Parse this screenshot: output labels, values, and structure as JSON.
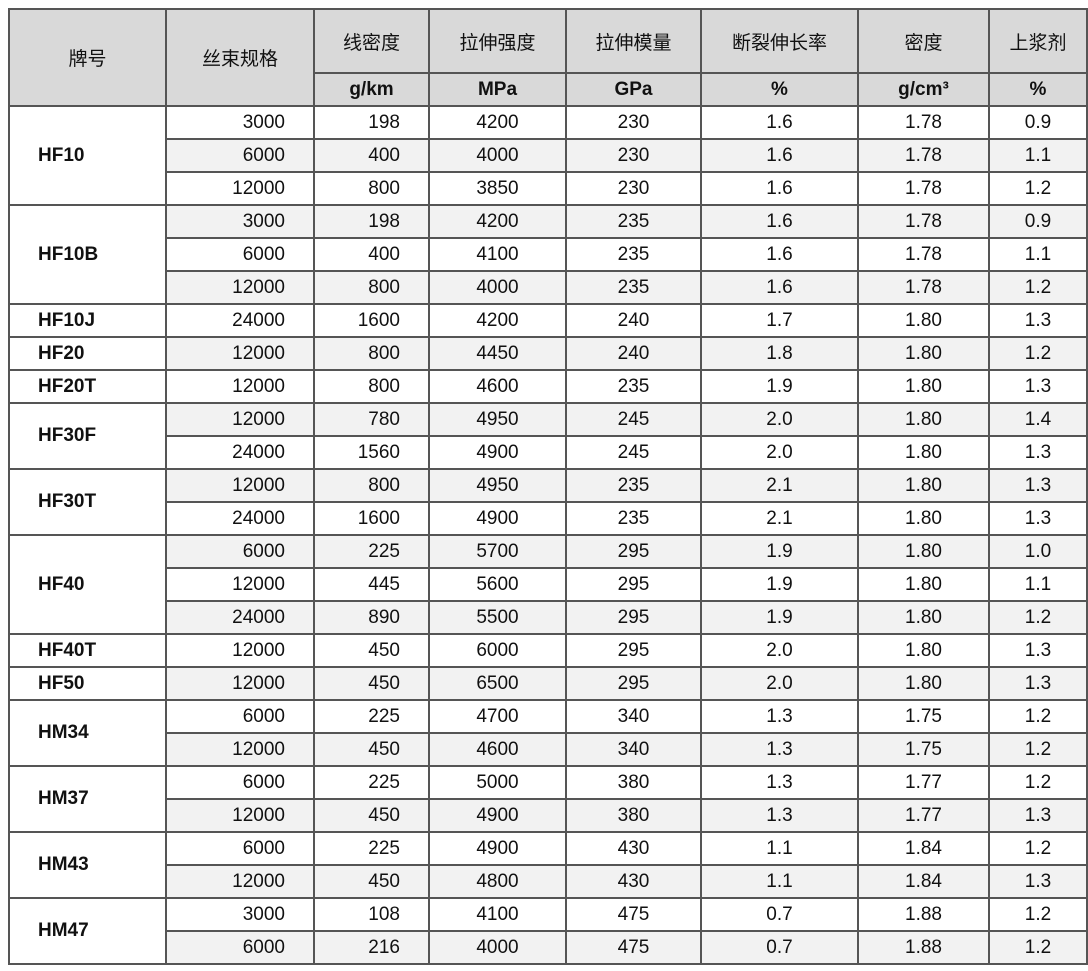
{
  "headers": [
    "牌号",
    "丝束规格",
    "线密度",
    "拉伸强度",
    "拉伸模量",
    "断裂伸长率",
    "密度",
    "上浆剂"
  ],
  "units": [
    "g/km",
    "MPa",
    "GPa",
    "%",
    "g/cm³",
    "%"
  ],
  "groups": [
    {
      "brand": "HF10",
      "rows": [
        [
          "3000",
          "198",
          "4200",
          "230",
          "1.6",
          "1.78",
          "0.9"
        ],
        [
          "6000",
          "400",
          "4000",
          "230",
          "1.6",
          "1.78",
          "1.1"
        ],
        [
          "12000",
          "800",
          "3850",
          "230",
          "1.6",
          "1.78",
          "1.2"
        ]
      ]
    },
    {
      "brand": "HF10B",
      "rows": [
        [
          "3000",
          "198",
          "4200",
          "235",
          "1.6",
          "1.78",
          "0.9"
        ],
        [
          "6000",
          "400",
          "4100",
          "235",
          "1.6",
          "1.78",
          "1.1"
        ],
        [
          "12000",
          "800",
          "4000",
          "235",
          "1.6",
          "1.78",
          "1.2"
        ]
      ]
    },
    {
      "brand": "HF10J",
      "rows": [
        [
          "24000",
          "1600",
          "4200",
          "240",
          "1.7",
          "1.80",
          "1.3"
        ]
      ]
    },
    {
      "brand": "HF20",
      "rows": [
        [
          "12000",
          "800",
          "4450",
          "240",
          "1.8",
          "1.80",
          "1.2"
        ]
      ]
    },
    {
      "brand": "HF20T",
      "rows": [
        [
          "12000",
          "800",
          "4600",
          "235",
          "1.9",
          "1.80",
          "1.3"
        ]
      ]
    },
    {
      "brand": "HF30F",
      "rows": [
        [
          "12000",
          "780",
          "4950",
          "245",
          "2.0",
          "1.80",
          "1.4"
        ],
        [
          "24000",
          "1560",
          "4900",
          "245",
          "2.0",
          "1.80",
          "1.3"
        ]
      ]
    },
    {
      "brand": "HF30T",
      "rows": [
        [
          "12000",
          "800",
          "4950",
          "235",
          "2.1",
          "1.80",
          "1.3"
        ],
        [
          "24000",
          "1600",
          "4900",
          "235",
          "2.1",
          "1.80",
          "1.3"
        ]
      ]
    },
    {
      "brand": "HF40",
      "rows": [
        [
          "6000",
          "225",
          "5700",
          "295",
          "1.9",
          "1.80",
          "1.0"
        ],
        [
          "12000",
          "445",
          "5600",
          "295",
          "1.9",
          "1.80",
          "1.1"
        ],
        [
          "24000",
          "890",
          "5500",
          "295",
          "1.9",
          "1.80",
          "1.2"
        ]
      ]
    },
    {
      "brand": "HF40T",
      "rows": [
        [
          "12000",
          "450",
          "6000",
          "295",
          "2.0",
          "1.80",
          "1.3"
        ]
      ]
    },
    {
      "brand": "HF50",
      "rows": [
        [
          "12000",
          "450",
          "6500",
          "295",
          "2.0",
          "1.80",
          "1.3"
        ]
      ]
    },
    {
      "brand": "HM34",
      "rows": [
        [
          "6000",
          "225",
          "4700",
          "340",
          "1.3",
          "1.75",
          "1.2"
        ],
        [
          "12000",
          "450",
          "4600",
          "340",
          "1.3",
          "1.75",
          "1.2"
        ]
      ]
    },
    {
      "brand": "HM37",
      "rows": [
        [
          "6000",
          "225",
          "5000",
          "380",
          "1.3",
          "1.77",
          "1.2"
        ],
        [
          "12000",
          "450",
          "4900",
          "380",
          "1.3",
          "1.77",
          "1.3"
        ]
      ]
    },
    {
      "brand": "HM43",
      "rows": [
        [
          "6000",
          "225",
          "4900",
          "430",
          "1.1",
          "1.84",
          "1.2"
        ],
        [
          "12000",
          "450",
          "4800",
          "430",
          "1.1",
          "1.84",
          "1.3"
        ]
      ]
    },
    {
      "brand": "HM47",
      "rows": [
        [
          "3000",
          "108",
          "4100",
          "475",
          "0.7",
          "1.88",
          "1.2"
        ],
        [
          "6000",
          "216",
          "4000",
          "475",
          "0.7",
          "1.88",
          "1.2"
        ]
      ]
    }
  ]
}
